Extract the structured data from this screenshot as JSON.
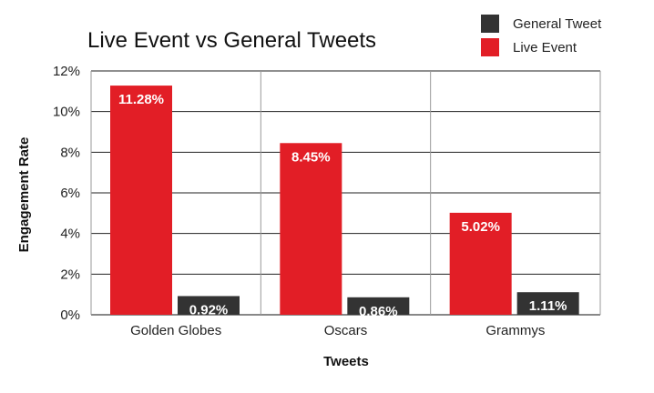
{
  "chart_data": {
    "type": "bar",
    "title": "Live Event vs General Tweets",
    "xlabel": "Tweets",
    "ylabel": "Engagement Rate",
    "categories": [
      "Golden Globes",
      "Oscars",
      "Grammys"
    ],
    "series": [
      {
        "name": "Live Event",
        "values": [
          11.28,
          8.45,
          5.02
        ],
        "labels": [
          "11.28%",
          "8.45%",
          "5.02%"
        ],
        "color": "#e21e26"
      },
      {
        "name": "General Tweet",
        "values": [
          0.92,
          0.86,
          1.11
        ],
        "labels": [
          "0.92%",
          "0.86%",
          "1.11%"
        ],
        "color": "#333333"
      }
    ],
    "legend_order": [
      "General Tweet",
      "Live Event"
    ],
    "yticks": [
      "0%",
      "2%",
      "4%",
      "6%",
      "8%",
      "10%",
      "12%"
    ],
    "ylim": [
      0,
      12
    ],
    "grid": true,
    "legend_position": "top-right"
  }
}
